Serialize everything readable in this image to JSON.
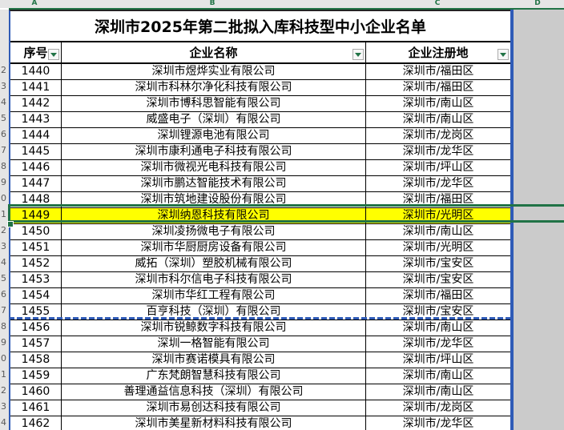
{
  "sheet": {
    "column_letters": [
      "A",
      "B",
      "C",
      "D"
    ],
    "title": "深圳市2025年第二批拟入库科技型中小企业名单",
    "columns": [
      {
        "label": "序号"
      },
      {
        "label": "企业名称"
      },
      {
        "label": "企业注册地"
      }
    ],
    "selected_no": "1449",
    "rows": [
      {
        "row_digit": "2",
        "no": "1440",
        "name": "深圳市煜烨实业有限公司",
        "loc": "深圳市/福田区"
      },
      {
        "row_digit": "3",
        "no": "1441",
        "name": "深圳市科林尔净化科技有限公司",
        "loc": "深圳市/福田区"
      },
      {
        "row_digit": "4",
        "no": "1442",
        "name": "深圳市博科思智能有限公司",
        "loc": "深圳市/南山区"
      },
      {
        "row_digit": "5",
        "no": "1443",
        "name": "威盛电子（深圳）有限公司",
        "loc": "深圳市/南山区"
      },
      {
        "row_digit": "6",
        "no": "1444",
        "name": "深圳锂源电池有限公司",
        "loc": "深圳市/龙岗区"
      },
      {
        "row_digit": "7",
        "no": "1445",
        "name": "深圳市康利通电子科技有限公司",
        "loc": "深圳市/龙华区"
      },
      {
        "row_digit": "8",
        "no": "1446",
        "name": "深圳市微视光电科技有限公司",
        "loc": "深圳市/坪山区"
      },
      {
        "row_digit": "9",
        "no": "1447",
        "name": "深圳市鹏达智能技术有限公司",
        "loc": "深圳市/龙华区"
      },
      {
        "row_digit": "0",
        "no": "1448",
        "name": "深圳市筑地建设股份有限公司",
        "loc": "深圳市/福田区"
      },
      {
        "row_digit": "1",
        "no": "1449",
        "name": "深圳纳恩科技有限公司",
        "loc": "深圳市/光明区"
      },
      {
        "row_digit": "2",
        "no": "1450",
        "name": "深圳凌扬微电子有限公司",
        "loc": "深圳市/南山区"
      },
      {
        "row_digit": "3",
        "no": "1451",
        "name": "深圳市华厨厨房设备有限公司",
        "loc": "深圳市/光明区"
      },
      {
        "row_digit": "4",
        "no": "1452",
        "name": "威拓（深圳）塑胶机械有限公司",
        "loc": "深圳市/宝安区"
      },
      {
        "row_digit": "5",
        "no": "1453",
        "name": "深圳市科尔信电子科技有限公司",
        "loc": "深圳市/宝安区"
      },
      {
        "row_digit": "6",
        "no": "1454",
        "name": "深圳市华红工程有限公司",
        "loc": "深圳市/福田区"
      },
      {
        "row_digit": "7",
        "no": "1455",
        "name": "百亨科技（深圳）有限公司",
        "loc": "深圳市/宝安区"
      },
      {
        "row_digit": "8",
        "no": "1456",
        "name": "深圳市锐鲸数字科技有限公司",
        "loc": "深圳市/南山区"
      },
      {
        "row_digit": "9",
        "no": "1457",
        "name": "深圳一格智能有限公司",
        "loc": "深圳市/龙华区"
      },
      {
        "row_digit": "0",
        "no": "1458",
        "name": "深圳市赛诺模具有限公司",
        "loc": "深圳市/坪山区"
      },
      {
        "row_digit": "1",
        "no": "1459",
        "name": "广东梵朗智慧科技有限公司",
        "loc": "深圳市/南山区"
      },
      {
        "row_digit": "2",
        "no": "1460",
        "name": "善理通益信息科技（深圳）有限公司",
        "loc": "深圳市/南山区"
      },
      {
        "row_digit": "3",
        "no": "1461",
        "name": "深圳市易创达科技有限公司",
        "loc": "深圳市/龙岗区"
      },
      {
        "row_digit": "4",
        "no": "1462",
        "name": "深圳市美星新材料科技有限公司",
        "loc": "深圳市/龙华区"
      }
    ],
    "colors": {
      "accent_green": "#217346",
      "highlight_yellow": "#FFFF00",
      "pagebreak_blue": "#2F5BB7",
      "outside_gray": "#CBCBCB"
    }
  }
}
